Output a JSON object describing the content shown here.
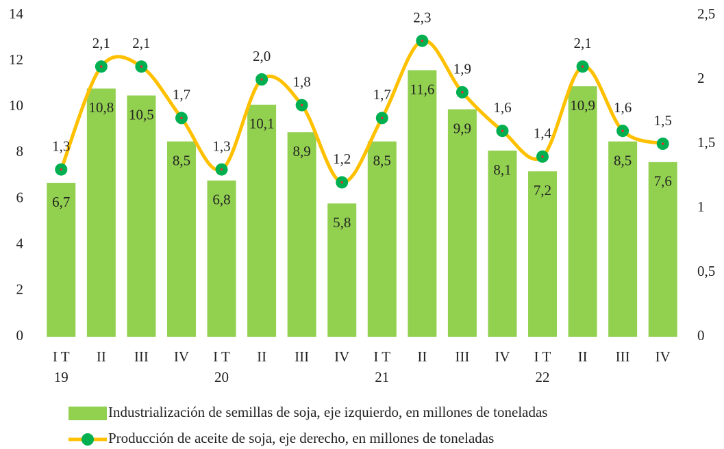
{
  "chart_data": {
    "type": "bar_line",
    "categories": [
      [
        "I T",
        "19"
      ],
      [
        "II"
      ],
      [
        "III"
      ],
      [
        "IV"
      ],
      [
        "I T",
        "20"
      ],
      [
        "II"
      ],
      [
        "III"
      ],
      [
        "IV"
      ],
      [
        "I T",
        "21"
      ],
      [
        "II"
      ],
      [
        "III"
      ],
      [
        "IV"
      ],
      [
        "I T",
        "22"
      ],
      [
        "II"
      ],
      [
        "III"
      ],
      [
        "IV"
      ]
    ],
    "series": [
      {
        "name": "Industrialización de semillas de soja, eje izquierdo, en millones de toneladas",
        "type": "bar",
        "color": "#92d050",
        "values": [
          6.7,
          10.8,
          10.5,
          8.5,
          6.8,
          10.1,
          8.9,
          5.8,
          8.5,
          11.6,
          9.9,
          8.1,
          7.2,
          10.9,
          8.5,
          7.6
        ],
        "value_labels": [
          "6,7",
          "10,8",
          "10,5",
          "8,5",
          "6,8",
          "10,1",
          "8,9",
          "5,8",
          "8,5",
          "11,6",
          "9,9",
          "8,1",
          "7,2",
          "10,9",
          "8,5",
          "7,6"
        ]
      },
      {
        "name": "Producción de aceite de soja, eje derecho, en millones de toneladas",
        "type": "line",
        "axis": "y2",
        "color": "#ffc000",
        "marker_color": "#00b050",
        "values": [
          1.3,
          2.1,
          2.1,
          1.7,
          1.3,
          2.0,
          1.8,
          1.2,
          1.7,
          2.3,
          1.9,
          1.6,
          1.4,
          2.1,
          1.6,
          1.5
        ],
        "value_labels": [
          "1,3",
          "2,1",
          "2,1",
          "1,7",
          "1,3",
          "2,0",
          "1,8",
          "1,2",
          "1,7",
          "2,3",
          "1,9",
          "1,6",
          "1,4",
          "2,1",
          "1,6",
          "1,5"
        ]
      }
    ],
    "ylim": [
      0,
      14
    ],
    "yticks": [
      0,
      2,
      4,
      6,
      8,
      10,
      12,
      14
    ],
    "y2lim": [
      0,
      2.5
    ],
    "y2ticks": [
      0,
      {
        "value": 0.5,
        "label": "0,5"
      },
      1,
      {
        "value": 1.5,
        "label": "1,5"
      },
      2,
      {
        "value": 2.5,
        "label": "2,5"
      }
    ],
    "legend": "bottom"
  }
}
